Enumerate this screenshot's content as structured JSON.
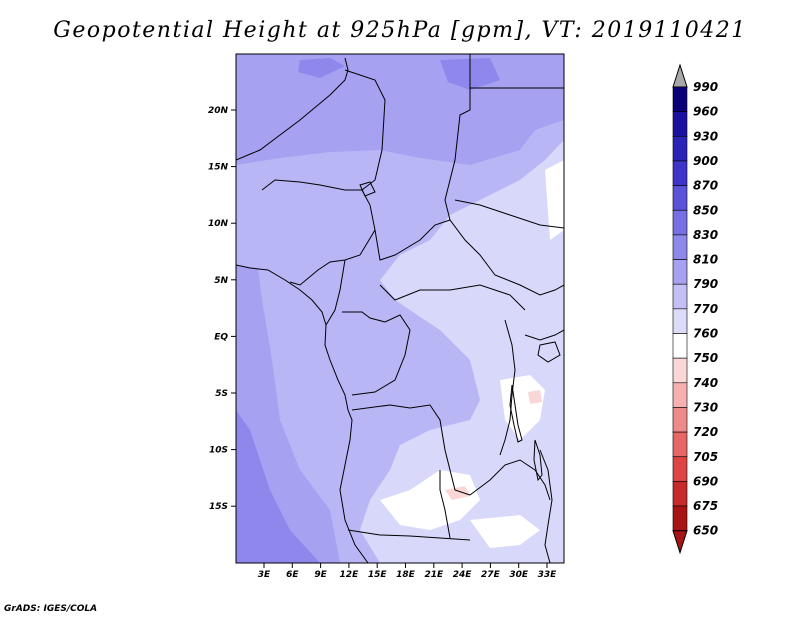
{
  "title": "Geopotential Height at 925hPa [gpm], VT: 2019110421",
  "footer": "GrADS: IGES/COLA",
  "map": {
    "lat_labels": [
      "20N",
      "15N",
      "10N",
      "5N",
      "EQ",
      "5S",
      "10S",
      "15S"
    ],
    "lon_labels": [
      "3E",
      "6E",
      "9E",
      "12E",
      "15E",
      "18E",
      "21E",
      "24E",
      "27E",
      "30E",
      "33E"
    ],
    "colors": {
      "c790_810": "#b9b6f6",
      "c810_830": "#a6a1f1",
      "c830_850": "#8f88ec",
      "c770_790": "#d8d8fa",
      "c760_770": "#ffffff",
      "c750_760": "#fbd6d6",
      "border": "#000000"
    }
  },
  "colorbar": {
    "labels": [
      "990",
      "960",
      "930",
      "900",
      "870",
      "850",
      "830",
      "810",
      "790",
      "770",
      "760",
      "750",
      "740",
      "730",
      "720",
      "705",
      "690",
      "675",
      "650"
    ],
    "colors": [
      "#0a0078",
      "#1a10a0",
      "#2b22b8",
      "#3e35c8",
      "#5a52d8",
      "#7770e3",
      "#8f88ec",
      "#a6a1f1",
      "#c3c0f6",
      "#dcdcfa",
      "#ffffff",
      "#fbd6d6",
      "#f6b0b0",
      "#ef8a8a",
      "#e76666",
      "#de4444",
      "#c62a2a",
      "#a81414",
      "#8e0000"
    ],
    "top_arrow_color": "#a8a8a8",
    "bottom_arrow_color": "#a81414"
  }
}
